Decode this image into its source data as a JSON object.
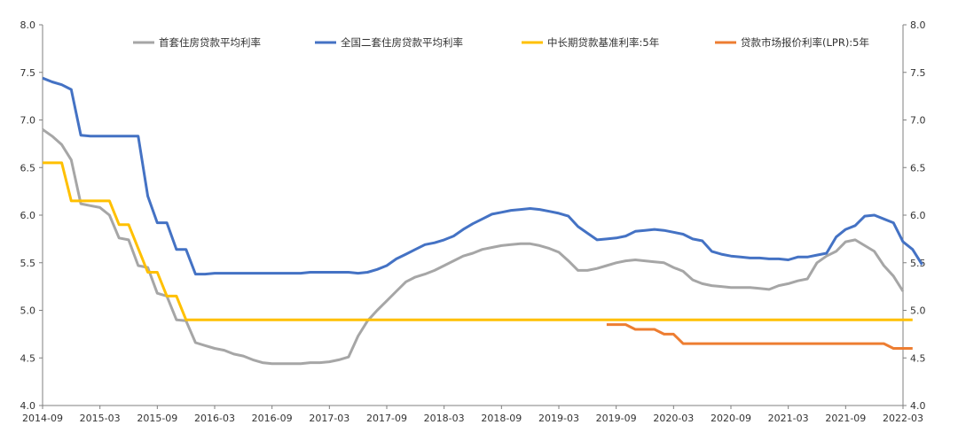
{
  "chart_data": {
    "type": "line",
    "x_ticks": [
      "2014-09",
      "2015-03",
      "2015-09",
      "2016-03",
      "2016-09",
      "2017-03",
      "2017-09",
      "2018-03",
      "2018-09",
      "2019-03",
      "2019-09",
      "2020-03",
      "2020-09",
      "2021-03",
      "2021-09",
      "2022-03"
    ],
    "ylim": [
      4.0,
      8.0
    ],
    "y_ticks": [
      "4.0",
      "4.5",
      "5.0",
      "5.5",
      "6.0",
      "6.5",
      "7.0",
      "7.5",
      "8.0"
    ],
    "legend_position": "top",
    "grid": false,
    "series": [
      {
        "name": "首套住房贷款平均利率",
        "color": "#a6a6a6",
        "start": "2014-09",
        "values": [
          6.9,
          6.83,
          6.74,
          6.58,
          6.12,
          6.1,
          6.08,
          6.0,
          5.76,
          5.74,
          5.47,
          5.45,
          5.18,
          5.15,
          4.9,
          4.89,
          4.66,
          4.63,
          4.6,
          4.58,
          4.54,
          4.52,
          4.48,
          4.45,
          4.44,
          4.44,
          4.44,
          4.44,
          4.45,
          4.45,
          4.46,
          4.48,
          4.51,
          4.73,
          4.89,
          5.0,
          5.1,
          5.2,
          5.3,
          5.35,
          5.38,
          5.42,
          5.47,
          5.52,
          5.57,
          5.6,
          5.64,
          5.66,
          5.68,
          5.69,
          5.7,
          5.7,
          5.68,
          5.65,
          5.61,
          5.52,
          5.42,
          5.42,
          5.44,
          5.47,
          5.5,
          5.52,
          5.53,
          5.52,
          5.51,
          5.5,
          5.45,
          5.41,
          5.32,
          5.28,
          5.26,
          5.25,
          5.24,
          5.24,
          5.24,
          5.23,
          5.22,
          5.26,
          5.28,
          5.31,
          5.33,
          5.5,
          5.57,
          5.62,
          5.72,
          5.74,
          5.68,
          5.62,
          5.47,
          5.36,
          5.2
        ]
      },
      {
        "name": "全国二套住房贷款平均利率",
        "color": "#4472c4",
        "start": "2014-09",
        "values": [
          7.44,
          7.4,
          7.37,
          7.32,
          6.84,
          6.83,
          6.83,
          6.83,
          6.83,
          6.83,
          6.83,
          6.2,
          5.92,
          5.92,
          5.64,
          5.64,
          5.38,
          5.38,
          5.39,
          5.39,
          5.39,
          5.39,
          5.39,
          5.39,
          5.39,
          5.39,
          5.39,
          5.39,
          5.4,
          5.4,
          5.4,
          5.4,
          5.4,
          5.39,
          5.4,
          5.43,
          5.47,
          5.54,
          5.59,
          5.64,
          5.69,
          5.71,
          5.74,
          5.78,
          5.85,
          5.91,
          5.96,
          6.01,
          6.03,
          6.05,
          6.06,
          6.07,
          6.06,
          6.04,
          6.02,
          5.99,
          5.88,
          5.81,
          5.74,
          5.75,
          5.76,
          5.78,
          5.83,
          5.84,
          5.85,
          5.84,
          5.82,
          5.8,
          5.75,
          5.73,
          5.62,
          5.59,
          5.57,
          5.56,
          5.55,
          5.55,
          5.54,
          5.54,
          5.53,
          5.56,
          5.56,
          5.58,
          5.6,
          5.77,
          5.85,
          5.89,
          5.99,
          6.0,
          5.96,
          5.92,
          5.72,
          5.64,
          5.48
        ]
      },
      {
        "name": "中长期贷款基准利率:5年",
        "color": "#ffc000",
        "start": "2014-09",
        "values": [
          6.55,
          6.55,
          6.55,
          6.15,
          6.15,
          6.15,
          6.15,
          6.15,
          5.9,
          5.9,
          5.65,
          5.4,
          5.4,
          5.15,
          5.15,
          4.9,
          4.9,
          4.9,
          4.9,
          4.9,
          4.9,
          4.9,
          4.9,
          4.9,
          4.9,
          4.9,
          4.9,
          4.9,
          4.9,
          4.9,
          4.9,
          4.9,
          4.9,
          4.9,
          4.9,
          4.9,
          4.9,
          4.9,
          4.9,
          4.9,
          4.9,
          4.9,
          4.9,
          4.9,
          4.9,
          4.9,
          4.9,
          4.9,
          4.9,
          4.9,
          4.9,
          4.9,
          4.9,
          4.9,
          4.9,
          4.9,
          4.9,
          4.9,
          4.9,
          4.9,
          4.9,
          4.9,
          4.9,
          4.9,
          4.9,
          4.9,
          4.9,
          4.9,
          4.9,
          4.9,
          4.9,
          4.9,
          4.9,
          4.9,
          4.9,
          4.9,
          4.9,
          4.9,
          4.9,
          4.9,
          4.9,
          4.9,
          4.9,
          4.9,
          4.9,
          4.9,
          4.9,
          4.9,
          4.9,
          4.9,
          4.9,
          4.9
        ]
      },
      {
        "name": "贷款市场报价利率(LPR):5年",
        "color": "#ed7d31",
        "start": "2019-08",
        "values": [
          4.85,
          4.85,
          4.85,
          4.8,
          4.8,
          4.8,
          4.75,
          4.75,
          4.65,
          4.65,
          4.65,
          4.65,
          4.65,
          4.65,
          4.65,
          4.65,
          4.65,
          4.65,
          4.65,
          4.65,
          4.65,
          4.65,
          4.65,
          4.65,
          4.65,
          4.65,
          4.65,
          4.65,
          4.65,
          4.65,
          4.6,
          4.6,
          4.6
        ]
      }
    ]
  }
}
